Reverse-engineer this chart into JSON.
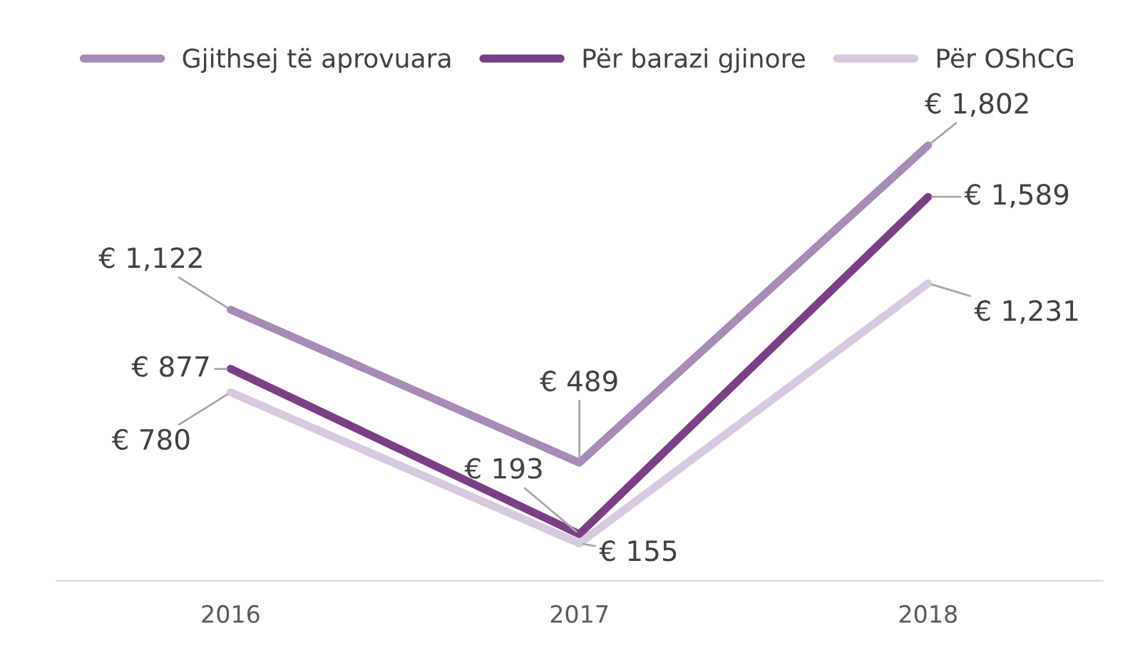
{
  "chart_data": {
    "type": "line",
    "categories": [
      "2016",
      "2017",
      "2018"
    ],
    "series": [
      {
        "name": "Gjithsej të aprovuara",
        "color": "#a68bb4",
        "values": [
          1122,
          489,
          1802
        ],
        "value_labels": [
          "€ 1,122",
          "€ 489",
          "€ 1,802"
        ]
      },
      {
        "name": "Për barazi gjinore",
        "color": "#7b3f85",
        "values": [
          877,
          193,
          1589
        ],
        "value_labels": [
          "€ 877",
          "€ 193",
          "€ 1,589"
        ]
      },
      {
        "name": "Për OShCG",
        "color": "#d7c9e0",
        "values": [
          780,
          155,
          1231
        ],
        "value_labels": [
          "€ 780",
          "€ 155",
          "€ 1,231"
        ]
      }
    ],
    "legend": "top",
    "grid": false,
    "marker": "none",
    "line_style": "solid"
  }
}
